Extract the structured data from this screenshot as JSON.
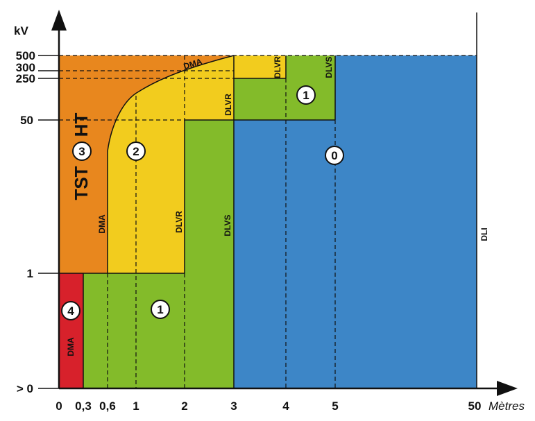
{
  "chart": {
    "y_unit": "kV",
    "x_unit": "Mètres",
    "x_ticks": [
      "0",
      "0,3",
      "0,6",
      "1",
      "2",
      "3",
      "4",
      "5",
      "50"
    ],
    "y_ticks": [
      "> 0",
      "1",
      "50",
      "250",
      "300",
      "500"
    ],
    "colors": {
      "zone4": "#d7212b",
      "zone3": "#e8871e",
      "zone2": "#f2cc1e",
      "zone1": "#83bb2a",
      "zone0": "#3d86c7"
    },
    "zones": {
      "z4": "4",
      "z3": "3",
      "z2": "2",
      "z1_low": "1",
      "z1_high": "1",
      "z0": "0"
    },
    "boundary_labels": {
      "dma_low": "DMA",
      "dma_mid": "DMA",
      "dma_curve": "DMA",
      "dlvr_mid": "DLVR",
      "dlvr_high": "DLVR",
      "dlvr_top": "DLVR",
      "dlvs_mid": "DLVS",
      "dlvs_top": "DLVS",
      "dli": "DLI"
    },
    "region_labels": {
      "tst": "TST",
      "ht": "HT"
    }
  }
}
